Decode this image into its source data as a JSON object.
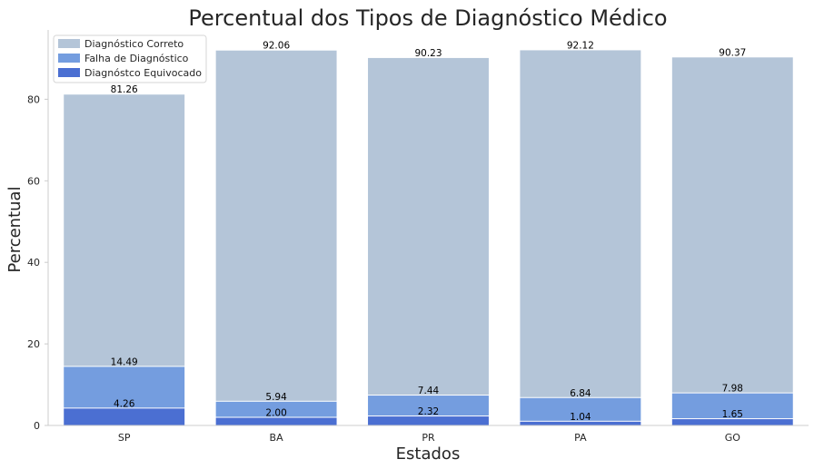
{
  "chart_data": {
    "type": "bar",
    "title": "Percentual dos Tipos de Diagnóstico Médico",
    "xlabel": "Estados",
    "ylabel": "Percentual",
    "categories": [
      "SP",
      "BA",
      "PR",
      "PA",
      "GO"
    ],
    "ylim": [
      0,
      97
    ],
    "yticks": [
      0,
      20,
      40,
      60,
      80
    ],
    "grid": false,
    "legend_position": "top-left",
    "series": [
      {
        "name": "Diagnóstico Correto",
        "color": "#b4c5d8",
        "values": [
          81.26,
          92.06,
          90.23,
          92.12,
          90.37
        ],
        "labels": [
          "81.26",
          "92.06",
          "90.23",
          "92.12",
          "90.37"
        ]
      },
      {
        "name": "Falha de Diagnóstico",
        "color": "#749ddf",
        "values": [
          14.49,
          5.94,
          7.44,
          6.84,
          7.98
        ],
        "labels": [
          "14.49",
          "5.94",
          "7.44",
          "6.84",
          "7.98"
        ]
      },
      {
        "name": "Diagnóstco Equivocado",
        "color": "#4b6fd2",
        "values": [
          4.26,
          2.0,
          2.32,
          1.04,
          1.65
        ],
        "labels": [
          "4.26",
          "2.00",
          "2.32",
          "1.04",
          "1.65"
        ]
      }
    ]
  }
}
